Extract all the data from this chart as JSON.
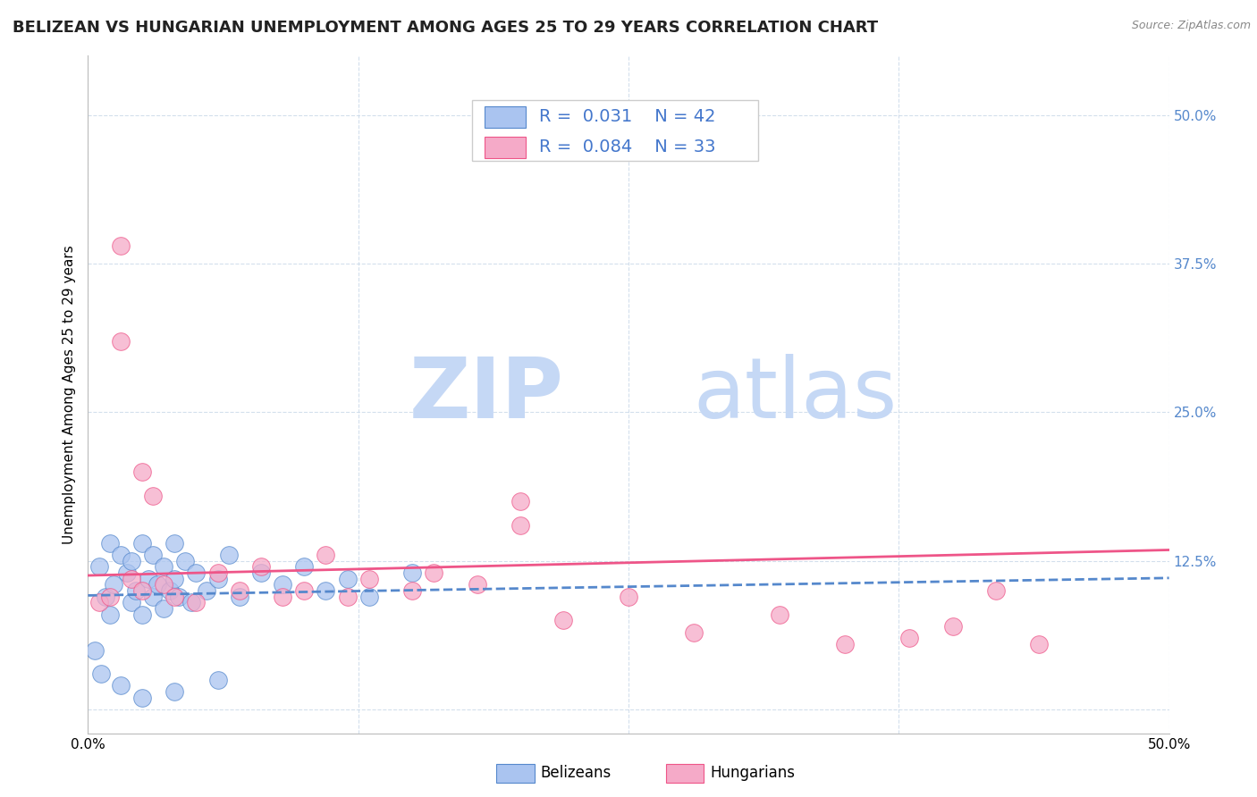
{
  "title": "BELIZEAN VS HUNGARIAN UNEMPLOYMENT AMONG AGES 25 TO 29 YEARS CORRELATION CHART",
  "source_text": "Source: ZipAtlas.com",
  "ylabel": "Unemployment Among Ages 25 to 29 years",
  "xlim": [
    0.0,
    0.5
  ],
  "ylim": [
    -0.02,
    0.55
  ],
  "xticks": [
    0.0,
    0.125,
    0.25,
    0.375,
    0.5
  ],
  "xticklabels": [
    "0.0%",
    "",
    "",
    "",
    "50.0%"
  ],
  "yticks": [
    0.0,
    0.125,
    0.25,
    0.375,
    0.5
  ],
  "yticklabels": [
    "",
    "12.5%",
    "25.0%",
    "37.5%",
    "50.0%"
  ],
  "belizean_R": 0.031,
  "belizean_N": 42,
  "hungarian_R": 0.084,
  "hungarian_N": 33,
  "belizean_color": "#aac4f0",
  "hungarian_color": "#f5aac8",
  "belizean_line_color": "#5588cc",
  "hungarian_line_color": "#ee5588",
  "legend_R_color_belizean": "#4477cc",
  "legend_R_color_hungarian": "#4477cc",
  "watermark_zip": "ZIP",
  "watermark_atlas": "atlas",
  "watermark_color": "#c5d8f5",
  "background_color": "#ffffff",
  "belizean_x": [
    0.005,
    0.008,
    0.01,
    0.01,
    0.012,
    0.015,
    0.018,
    0.02,
    0.02,
    0.022,
    0.025,
    0.025,
    0.028,
    0.03,
    0.03,
    0.032,
    0.035,
    0.035,
    0.038,
    0.04,
    0.04,
    0.042,
    0.045,
    0.048,
    0.05,
    0.055,
    0.06,
    0.065,
    0.07,
    0.08,
    0.09,
    0.1,
    0.11,
    0.12,
    0.13,
    0.15,
    0.003,
    0.006,
    0.015,
    0.025,
    0.04,
    0.06
  ],
  "belizean_y": [
    0.12,
    0.095,
    0.14,
    0.08,
    0.105,
    0.13,
    0.115,
    0.09,
    0.125,
    0.1,
    0.14,
    0.08,
    0.11,
    0.095,
    0.13,
    0.105,
    0.085,
    0.12,
    0.1,
    0.11,
    0.14,
    0.095,
    0.125,
    0.09,
    0.115,
    0.1,
    0.11,
    0.13,
    0.095,
    0.115,
    0.105,
    0.12,
    0.1,
    0.11,
    0.095,
    0.115,
    0.05,
    0.03,
    0.02,
    0.01,
    0.015,
    0.025
  ],
  "hungarian_x": [
    0.005,
    0.01,
    0.015,
    0.02,
    0.025,
    0.03,
    0.035,
    0.04,
    0.05,
    0.06,
    0.07,
    0.08,
    0.09,
    0.1,
    0.11,
    0.12,
    0.13,
    0.15,
    0.16,
    0.18,
    0.2,
    0.22,
    0.25,
    0.28,
    0.32,
    0.35,
    0.38,
    0.4,
    0.42,
    0.44,
    0.015,
    0.025,
    0.2
  ],
  "hungarian_y": [
    0.09,
    0.095,
    0.39,
    0.11,
    0.1,
    0.18,
    0.105,
    0.095,
    0.09,
    0.115,
    0.1,
    0.12,
    0.095,
    0.1,
    0.13,
    0.095,
    0.11,
    0.1,
    0.115,
    0.105,
    0.175,
    0.075,
    0.095,
    0.065,
    0.08,
    0.055,
    0.06,
    0.07,
    0.1,
    0.055,
    0.31,
    0.2,
    0.155
  ],
  "title_fontsize": 13,
  "axis_label_fontsize": 11,
  "tick_fontsize": 11,
  "legend_fontsize": 14
}
